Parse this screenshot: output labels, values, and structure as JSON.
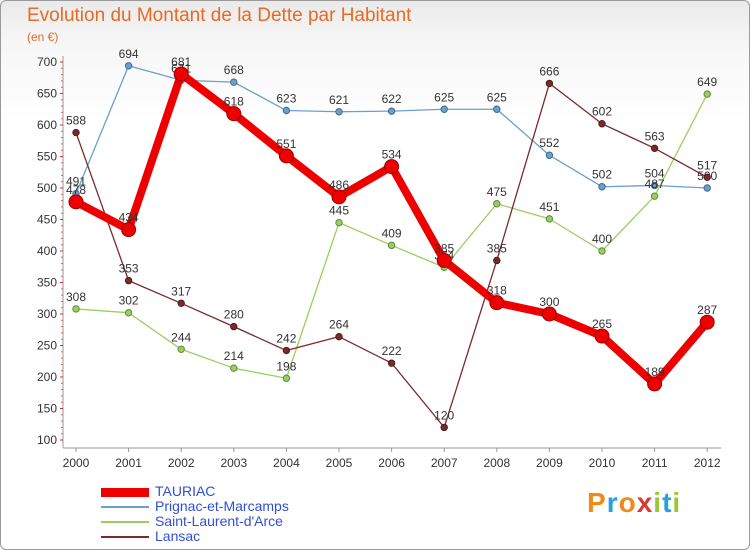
{
  "header": {
    "title": "Evolution du Montant de la Dette par Habitant",
    "subtitle": "(en €)"
  },
  "logo": {
    "text": "Proxiti",
    "colors": [
      "#f08a18",
      "#2a9fe0",
      "#f08a18",
      "#d83a30",
      "#98c838",
      "#2a9fe0",
      "#98c838"
    ]
  },
  "chart_data": {
    "type": "line",
    "x": [
      "2000",
      "2001",
      "2002",
      "2003",
      "2004",
      "2005",
      "2006",
      "2007",
      "2008",
      "2009",
      "2010",
      "2011",
      "2012"
    ],
    "ylim": [
      100,
      700
    ],
    "yticks": [
      "100",
      "150",
      "200",
      "250",
      "300",
      "350",
      "400",
      "450",
      "500",
      "550",
      "600",
      "650",
      "700"
    ],
    "grid": false,
    "legend_position": "bottom-left",
    "series": [
      {
        "name": "Prignac-et-Marcamps",
        "color": "#6b9fd0",
        "values": [
          491,
          694,
          671,
          668,
          623,
          621,
          622,
          625,
          625,
          552,
          502,
          504,
          500
        ],
        "labels": [
          "491",
          "694",
          "671",
          "668",
          "623",
          "621",
          "622",
          "625",
          "625",
          "552",
          "502",
          "504",
          "500"
        ]
      },
      {
        "name": "Saint-Laurent-d'Arce",
        "color": "#98d060",
        "values": [
          308,
          302,
          244,
          214,
          198,
          445,
          409,
          374,
          475,
          451,
          400,
          487,
          649
        ],
        "labels": [
          "308",
          "302",
          "244",
          "214",
          "198",
          "445",
          "409",
          "374",
          "475",
          "451",
          "400",
          "487",
          "649"
        ]
      },
      {
        "name": "Lansac",
        "color": "#7a2a2a",
        "values": [
          588,
          353,
          317,
          280,
          242,
          264,
          222,
          120,
          385,
          666,
          602,
          563,
          517
        ],
        "labels": [
          "588",
          "353",
          "317",
          "280",
          "242",
          "264",
          "222",
          "120",
          "385",
          "666",
          "602",
          "563",
          "517"
        ]
      },
      {
        "name": "TAURIAC",
        "color": "#ee0000",
        "values": [
          478,
          434,
          681,
          618,
          551,
          486,
          534,
          385,
          318,
          300,
          265,
          189,
          287
        ],
        "labels": [
          "478",
          "434",
          "681",
          "618",
          "551",
          "486",
          "534",
          "385",
          "318",
          "300",
          "265",
          "189",
          "287"
        ]
      }
    ],
    "legend_order": [
      "TAURIAC",
      "Prignac-et-Marcamps",
      "Saint-Laurent-d'Arce",
      "Lansac"
    ]
  }
}
